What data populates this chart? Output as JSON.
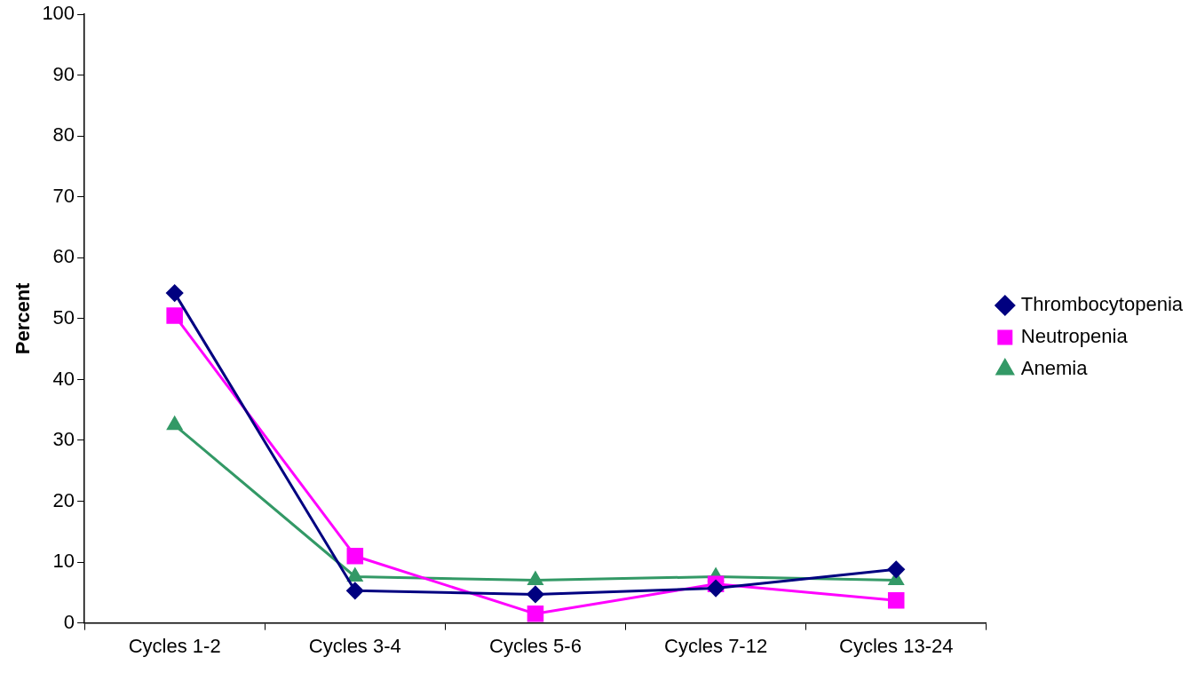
{
  "chart_data": {
    "type": "line",
    "ylabel": "Percent",
    "categories": [
      "Cycles 1-2",
      "Cycles 3-4",
      "Cycles 5-6",
      "Cycles 7-12",
      "Cycles 13-24"
    ],
    "series": [
      {
        "name": "Thrombocytopenia",
        "color": "#000080",
        "marker": "diamond",
        "values": [
          54.2,
          5.3,
          4.7,
          5.7,
          8.8
        ]
      },
      {
        "name": "Neutropenia",
        "color": "#ff00ff",
        "marker": "square",
        "values": [
          50.5,
          11.0,
          1.5,
          6.4,
          3.7
        ]
      },
      {
        "name": "Anemia",
        "color": "#339966",
        "marker": "triangle",
        "values": [
          32.5,
          7.6,
          7.0,
          7.6,
          7.0
        ]
      }
    ],
    "ylim": [
      0,
      100
    ],
    "yticks": [
      0,
      10,
      20,
      30,
      40,
      50,
      60,
      70,
      80,
      90,
      100
    ],
    "grid": false,
    "legend": "right",
    "line_style": "solid"
  }
}
